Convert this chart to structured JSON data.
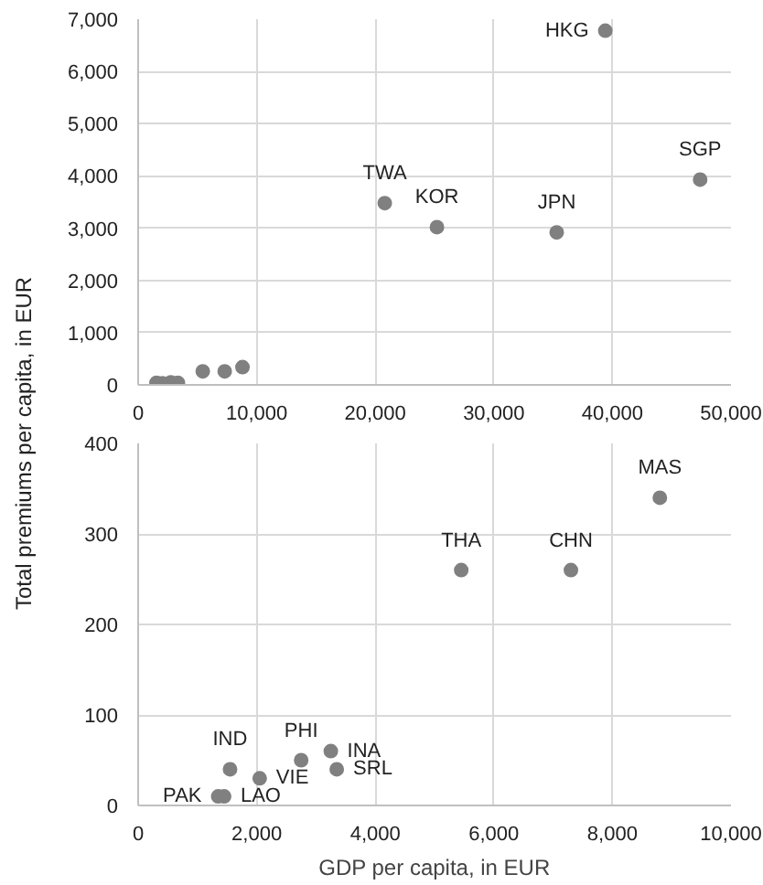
{
  "chart_data": [
    {
      "type": "scatter",
      "ylabel": "Total premiums per capita, in EUR",
      "marker": "circle",
      "grid": true,
      "x": [
        20800,
        25200,
        35300,
        39400,
        47400,
        1550,
        2050,
        2750,
        3350,
        5450,
        7300,
        8800
      ],
      "series": [
        {
          "color": "#808080",
          "values": [
            3480,
            3020,
            2920,
            6780,
            3930,
            40,
            30,
            50,
            40,
            260,
            260,
            340
          ]
        }
      ],
      "xlim": [
        0,
        50000
      ],
      "ylim": [
        0,
        7000
      ],
      "xticks": [
        0,
        {
          "value": 10000,
          "label": "10,000"
        },
        {
          "value": 20000,
          "label": "20,000"
        },
        {
          "value": 30000,
          "label": "30,000"
        },
        {
          "value": 40000,
          "label": "40,000"
        },
        {
          "value": 50000,
          "label": "50,000"
        }
      ],
      "yticks": [
        0,
        {
          "value": 1000,
          "label": "1,000"
        },
        {
          "value": 2000,
          "label": "2,000"
        },
        {
          "value": 3000,
          "label": "3,000"
        },
        {
          "value": 4000,
          "label": "4,000"
        },
        {
          "value": 5000,
          "label": "5,000"
        },
        {
          "value": 6000,
          "label": "6,000"
        },
        {
          "value": 7000,
          "label": "7,000"
        }
      ],
      "annotations": [
        {
          "text": "TWA",
          "x": 20800,
          "y": 3480
        },
        {
          "text": "KOR",
          "x": 25200,
          "y": 3020
        },
        {
          "text": "JPN",
          "x": 35300,
          "y": 2920
        },
        {
          "text": "HKG",
          "x": 39400,
          "y": 6780
        },
        {
          "text": "SGP",
          "x": 47400,
          "y": 3930
        }
      ]
    },
    {
      "type": "scatter",
      "xlabel": "GDP per capita, in EUR",
      "marker": "circle",
      "grid": true,
      "x": [
        1350,
        1450,
        1550,
        2050,
        2750,
        3250,
        3350,
        5450,
        7300,
        8800
      ],
      "series": [
        {
          "color": "#808080",
          "values": [
            10,
            10,
            40,
            30,
            50,
            60,
            40,
            260,
            260,
            340
          ]
        }
      ],
      "xlim": [
        0,
        10000
      ],
      "ylim": [
        0,
        400
      ],
      "xticks": [
        0,
        {
          "value": 2000,
          "label": "2,000"
        },
        {
          "value": 4000,
          "label": "4,000"
        },
        {
          "value": 6000,
          "label": "6,000"
        },
        {
          "value": 8000,
          "label": "8,000"
        },
        {
          "value": 10000,
          "label": "10,000"
        }
      ],
      "yticks": [
        0,
        100,
        200,
        300,
        400
      ],
      "annotations": [
        {
          "text": "PAK",
          "x": 1350,
          "y": 10
        },
        {
          "text": "LAO",
          "x": 1450,
          "y": 10
        },
        {
          "text": "IND",
          "x": 1550,
          "y": 40
        },
        {
          "text": "VIE",
          "x": 2050,
          "y": 30
        },
        {
          "text": "PHI",
          "x": 2750,
          "y": 50
        },
        {
          "text": "INA",
          "x": 3250,
          "y": 60
        },
        {
          "text": "SRL",
          "x": 3350,
          "y": 40
        },
        {
          "text": "THA",
          "x": 5450,
          "y": 260
        },
        {
          "text": "CHN",
          "x": 7300,
          "y": 260
        },
        {
          "text": "MAS",
          "x": 8800,
          "y": 340
        }
      ]
    }
  ]
}
